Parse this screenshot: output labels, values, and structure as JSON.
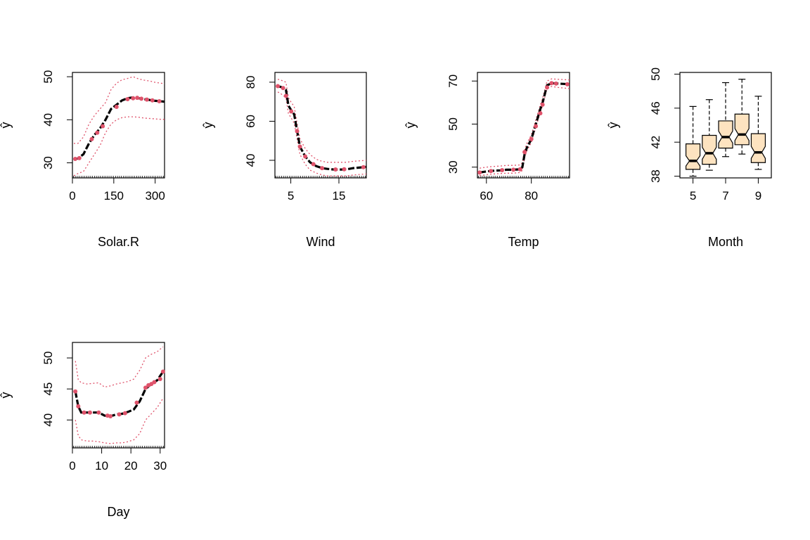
{
  "colors": {
    "fit": "#000000",
    "points": "#df536b",
    "band": "#df536b",
    "box_fill": "#fde3c0"
  },
  "chart_data": [
    {
      "type": "line",
      "xlabel": "Solar.R",
      "ylabel": "ŷ",
      "xlim": [
        0,
        334
      ],
      "ylim": [
        26.5,
        51
      ],
      "xticks": [
        0,
        150,
        300
      ],
      "xtick_labels": [
        "0",
        "150",
        "300"
      ],
      "yticks": [
        30,
        40,
        50
      ],
      "ytick_labels": [
        "30",
        "40",
        "50"
      ],
      "x": [
        5,
        20,
        40,
        60,
        80,
        100,
        120,
        140,
        160,
        180,
        200,
        220,
        240,
        260,
        280,
        300,
        320,
        334
      ],
      "y": [
        30.8,
        31.0,
        32.0,
        34.5,
        36.5,
        38.0,
        40.0,
        42.5,
        43.5,
        44.5,
        45.0,
        45.2,
        45.0,
        44.8,
        44.6,
        44.4,
        44.3,
        44.2
      ],
      "lower": [
        27.0,
        27.5,
        28.0,
        30.0,
        32.0,
        34.0,
        37.0,
        39.0,
        40.0,
        40.5,
        40.7,
        40.7,
        40.6,
        40.4,
        40.3,
        40.2,
        40.1,
        40.1
      ],
      "upper": [
        34.5,
        34.5,
        36.0,
        39.0,
        41.0,
        42.5,
        44.0,
        47.0,
        48.5,
        49.3,
        49.6,
        50.0,
        49.5,
        49.2,
        49.0,
        48.7,
        48.5,
        48.4
      ],
      "points_x": [
        10,
        25,
        70,
        90,
        110,
        160,
        200,
        220,
        235,
        250,
        270,
        290,
        315
      ],
      "points_y": [
        30.9,
        31.1,
        35.5,
        37.0,
        38.5,
        43.0,
        44.8,
        45.0,
        45.1,
        44.9,
        44.7,
        44.5,
        44.3
      ]
    },
    {
      "type": "line",
      "xlabel": "Wind",
      "ylabel": "ŷ",
      "xlim": [
        1.7,
        20.7
      ],
      "ylim": [
        31,
        85
      ],
      "xticks": [
        5,
        15
      ],
      "xtick_labels": [
        "5",
        "15"
      ],
      "yticks": [
        40,
        60,
        80
      ],
      "ytick_labels": [
        "40",
        "60",
        "80"
      ],
      "x": [
        2.3,
        3.0,
        4.0,
        4.5,
        5.0,
        5.7,
        6.3,
        6.9,
        8.0,
        9.0,
        10.3,
        11.5,
        12.6,
        14.0,
        15.5,
        16.6,
        18.0,
        20.7
      ],
      "y": [
        78.0,
        77.5,
        76.0,
        68.0,
        66.0,
        63.5,
        55.0,
        47.0,
        42.0,
        39.0,
        37.0,
        36.0,
        35.6,
        35.3,
        35.3,
        35.4,
        36.0,
        36.6
      ],
      "lower": [
        75.0,
        74.0,
        72.0,
        64.0,
        62.0,
        59.0,
        51.0,
        43.0,
        38.0,
        35.0,
        33.5,
        32.5,
        32.0,
        32.0,
        32.0,
        32.0,
        32.5,
        33.0
      ],
      "upper": [
        81.5,
        81.0,
        80.0,
        72.0,
        70.0,
        67.5,
        59.0,
        51.0,
        46.0,
        43.0,
        40.5,
        39.5,
        39.0,
        39.0,
        39.0,
        39.0,
        39.5,
        40.0
      ],
      "points_x": [
        2.3,
        3.4,
        4.0,
        5.1,
        6.3,
        6.9,
        8.0,
        9.7,
        11.5,
        14.3,
        16.1,
        20.1
      ],
      "points_y": [
        78.0,
        77.0,
        73.0,
        65.0,
        55.0,
        47.0,
        42.0,
        38.0,
        36.0,
        35.3,
        35.4,
        36.5
      ]
    },
    {
      "type": "line",
      "xlabel": "Temp",
      "ylabel": "ŷ",
      "xlim": [
        56,
        97
      ],
      "ylim": [
        25,
        74
      ],
      "xticks": [
        60,
        80
      ],
      "xtick_labels": [
        "60",
        "80"
      ],
      "yticks": [
        30,
        50,
        70
      ],
      "ytick_labels": [
        "30",
        "50",
        "70"
      ],
      "x": [
        57,
        60,
        63,
        66,
        69,
        72,
        75,
        76,
        77,
        78,
        80,
        82,
        84,
        85,
        87,
        89,
        92,
        97
      ],
      "y": [
        27.5,
        28.0,
        28.3,
        28.5,
        28.8,
        28.8,
        29.0,
        30.0,
        36.0,
        39.0,
        43.0,
        50.0,
        57.0,
        60.0,
        68.0,
        69.0,
        68.8,
        68.5
      ],
      "lower": [
        26.0,
        26.5,
        26.8,
        27.0,
        27.2,
        27.2,
        27.5,
        28.5,
        34.5,
        37.5,
        41.5,
        48.5,
        55.5,
        58.5,
        66.5,
        67.5,
        67.0,
        66.5
      ],
      "upper": [
        29.5,
        30.0,
        30.3,
        30.5,
        30.8,
        30.8,
        31.0,
        32.0,
        38.0,
        41.0,
        45.0,
        52.0,
        59.0,
        62.0,
        70.0,
        71.0,
        70.8,
        70.5
      ],
      "points_x": [
        57,
        62,
        67,
        72,
        75,
        77,
        80,
        82,
        84,
        85,
        87,
        89,
        91,
        96
      ],
      "points_y": [
        27.5,
        28.2,
        28.6,
        28.8,
        29.0,
        37.0,
        43.0,
        49.0,
        55.0,
        59.0,
        67.0,
        69.0,
        68.8,
        68.5
      ]
    },
    {
      "type": "box",
      "xlabel": "Month",
      "ylabel": "ŷ",
      "xlim": [
        4.2,
        9.8
      ],
      "ylim": [
        37.8,
        50.2
      ],
      "xticks": [
        5,
        7,
        9
      ],
      "xtick_labels": [
        "5",
        "7",
        "9"
      ],
      "yticks": [
        38,
        42,
        46,
        50
      ],
      "ytick_labels": [
        "38",
        "42",
        "46",
        "50"
      ],
      "categories": [
        5,
        6,
        7,
        8,
        9
      ],
      "boxes": [
        {
          "month": 5,
          "min": 38.0,
          "q1": 38.8,
          "median": 39.8,
          "q3": 41.8,
          "max": 46.2,
          "notch_low": 39.2,
          "notch_high": 40.4
        },
        {
          "month": 6,
          "min": 38.7,
          "q1": 39.4,
          "median": 40.7,
          "q3": 42.8,
          "max": 47.0,
          "notch_low": 40.0,
          "notch_high": 41.4
        },
        {
          "month": 7,
          "min": 40.3,
          "q1": 41.3,
          "median": 42.6,
          "q3": 44.5,
          "max": 49.0,
          "notch_low": 41.9,
          "notch_high": 43.3
        },
        {
          "month": 8,
          "min": 40.6,
          "q1": 41.7,
          "median": 42.9,
          "q3": 45.3,
          "max": 49.4,
          "notch_low": 42.2,
          "notch_high": 43.6
        },
        {
          "month": 9,
          "min": 38.8,
          "q1": 39.6,
          "median": 40.8,
          "q3": 43.0,
          "max": 47.4,
          "notch_low": 40.1,
          "notch_high": 41.5
        }
      ]
    },
    {
      "type": "line",
      "xlabel": "Day",
      "ylabel": "ŷ",
      "xlim": [
        0,
        31.5
      ],
      "ylim": [
        35.5,
        52.5
      ],
      "xticks": [
        0,
        10,
        20,
        30
      ],
      "xtick_labels": [
        "0",
        "10",
        "20",
        "30"
      ],
      "yticks": [
        40,
        45,
        50
      ],
      "ytick_labels": [
        "40",
        "45",
        "50"
      ],
      "x": [
        1,
        2,
        3,
        5,
        7,
        9,
        11,
        13,
        15,
        17,
        19,
        21,
        23,
        25,
        27,
        29,
        31
      ],
      "y": [
        44.6,
        42.2,
        41.2,
        41.2,
        41.2,
        41.2,
        40.7,
        40.6,
        40.9,
        41.0,
        41.3,
        41.7,
        43.0,
        45.0,
        45.8,
        46.4,
        47.8
      ],
      "lower": [
        40.0,
        37.5,
        36.8,
        36.6,
        36.6,
        36.5,
        36.3,
        36.2,
        36.3,
        36.3,
        36.5,
        36.8,
        37.8,
        40.0,
        41.0,
        42.0,
        43.5
      ],
      "upper": [
        49.5,
        46.5,
        46.0,
        45.8,
        45.9,
        46.0,
        45.3,
        45.5,
        45.8,
        46.0,
        46.2,
        46.6,
        48.0,
        50.0,
        50.6,
        51.0,
        51.8
      ],
      "points_x": [
        1,
        2,
        4,
        6,
        9,
        12,
        13,
        16,
        18,
        22,
        25,
        26,
        27,
        28,
        30,
        31
      ],
      "points_y": [
        44.6,
        42.2,
        41.2,
        41.2,
        41.2,
        40.7,
        40.6,
        40.9,
        41.1,
        42.8,
        45.2,
        45.6,
        45.8,
        46.1,
        46.6,
        47.8
      ]
    }
  ]
}
